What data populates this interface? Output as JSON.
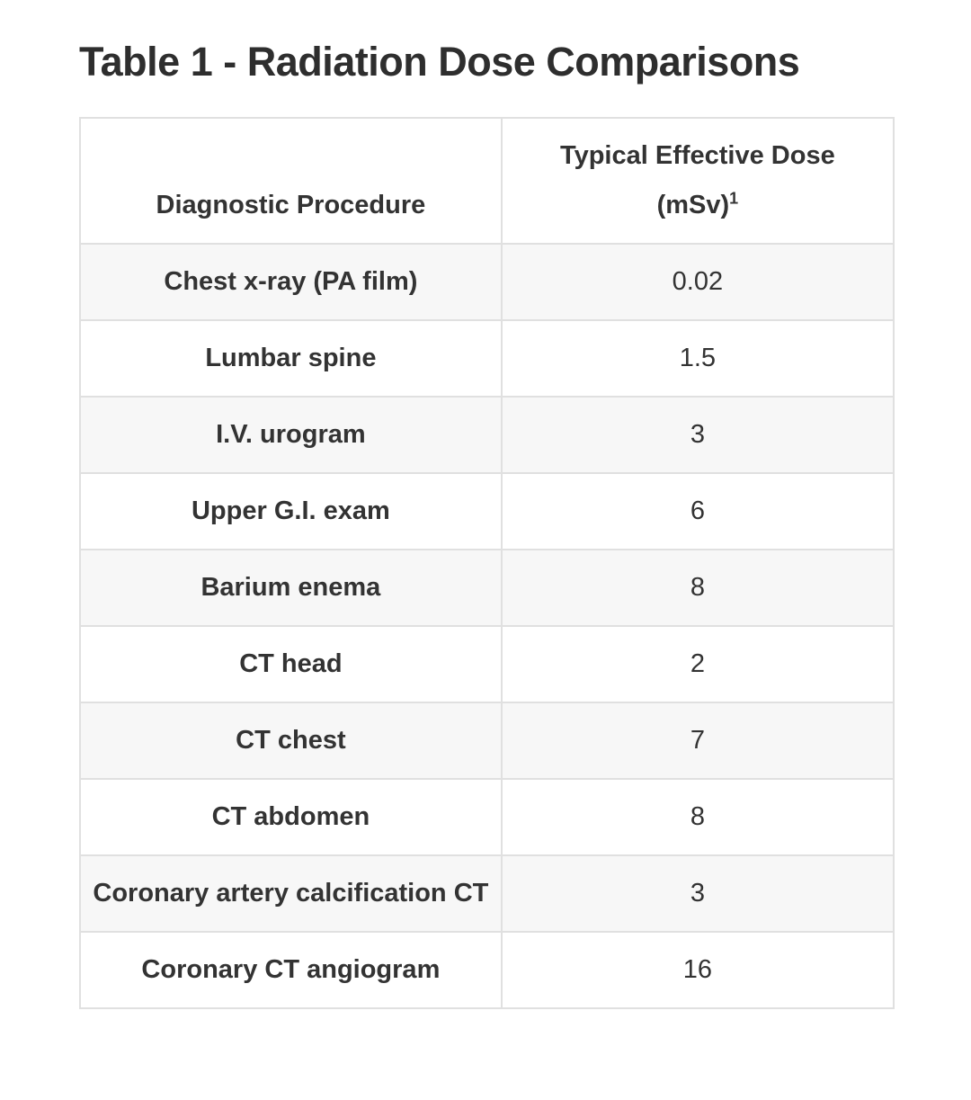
{
  "title": "Table 1 - Radiation Dose Comparisons",
  "table": {
    "columns": [
      {
        "label": "Diagnostic Procedure"
      },
      {
        "label_line1": "Typical Effective Dose",
        "label_line2": "(mSv)",
        "superscript": "1"
      }
    ],
    "rows": [
      {
        "procedure": "Chest x-ray (PA film)",
        "dose": "0.02"
      },
      {
        "procedure": "Lumbar spine",
        "dose": "1.5"
      },
      {
        "procedure": "I.V. urogram",
        "dose": "3"
      },
      {
        "procedure": "Upper G.I. exam",
        "dose": "6"
      },
      {
        "procedure": "Barium enema",
        "dose": "8"
      },
      {
        "procedure": "CT head",
        "dose": "2"
      },
      {
        "procedure": "CT chest",
        "dose": "7"
      },
      {
        "procedure": "CT abdomen",
        "dose": "8"
      },
      {
        "procedure": "Coronary artery calcification CT",
        "dose": "3"
      },
      {
        "procedure": "Coronary CT angiogram",
        "dose": "16"
      }
    ]
  },
  "colors": {
    "background": "#ffffff",
    "title_text": "#2e2e2e",
    "cell_text": "#333333",
    "border": "#e0e0e0",
    "stripe": "#f7f7f7"
  }
}
